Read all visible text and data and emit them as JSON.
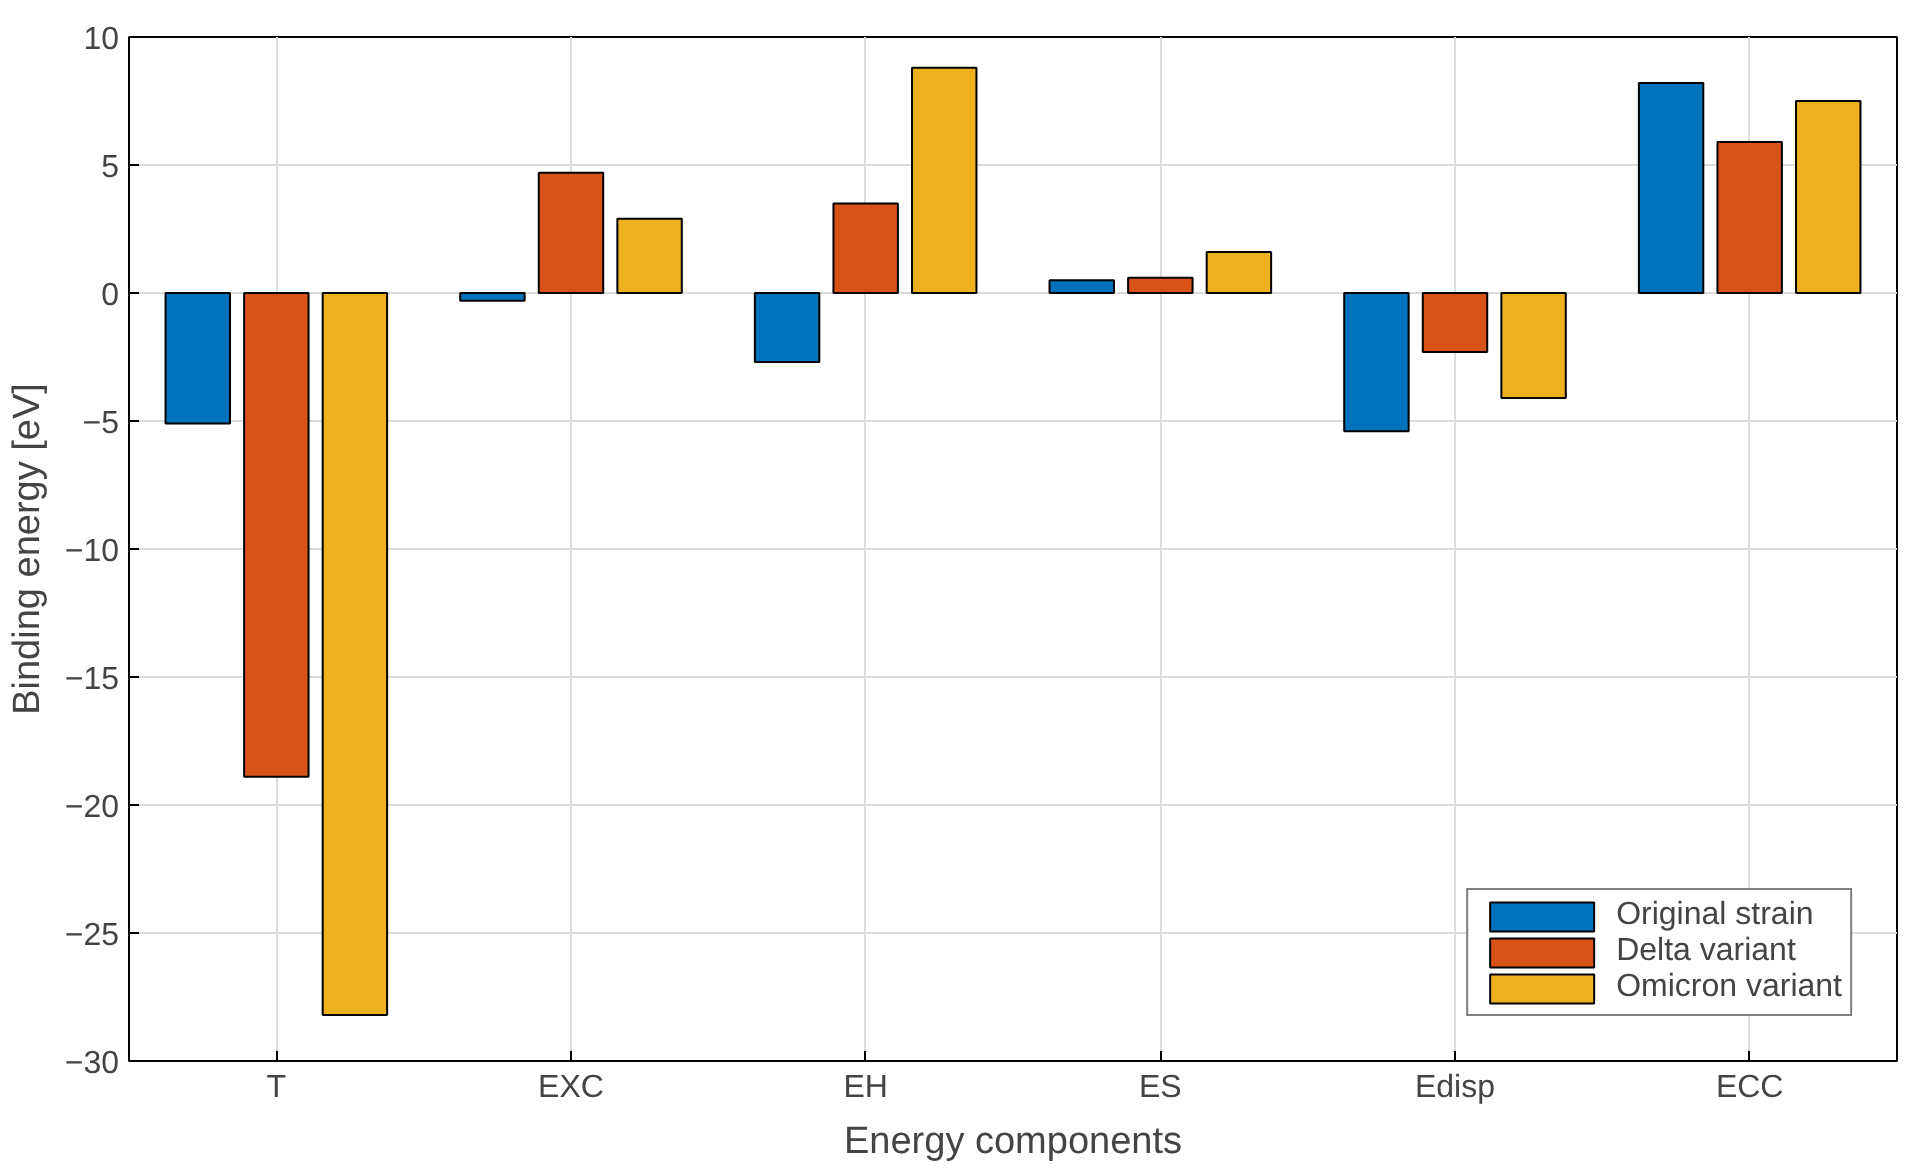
{
  "chart_data": {
    "type": "bar",
    "xlabel": "Energy components",
    "ylabel": "Binding energy [eV]",
    "categories": [
      "T",
      "EXC",
      "EH",
      "ES",
      "Edisp",
      "ECC"
    ],
    "series": [
      {
        "name": "Original strain",
        "color": "#0072bd",
        "values": [
          -5.1,
          -0.3,
          -2.7,
          0.5,
          -5.4,
          8.2
        ]
      },
      {
        "name": "Delta variant",
        "color": "#d95319",
        "values": [
          -18.9,
          4.7,
          3.5,
          0.6,
          -2.3,
          5.9
        ]
      },
      {
        "name": "Omicron variant",
        "color": "#edb120",
        "values": [
          -28.2,
          2.9,
          8.8,
          1.6,
          -4.1,
          7.5
        ]
      }
    ],
    "ylim": [
      -30,
      10
    ],
    "yticks": [
      -30,
      -25,
      -20,
      -15,
      -10,
      -5,
      0,
      5,
      10
    ],
    "grid": true,
    "legend": "bottom right"
  }
}
